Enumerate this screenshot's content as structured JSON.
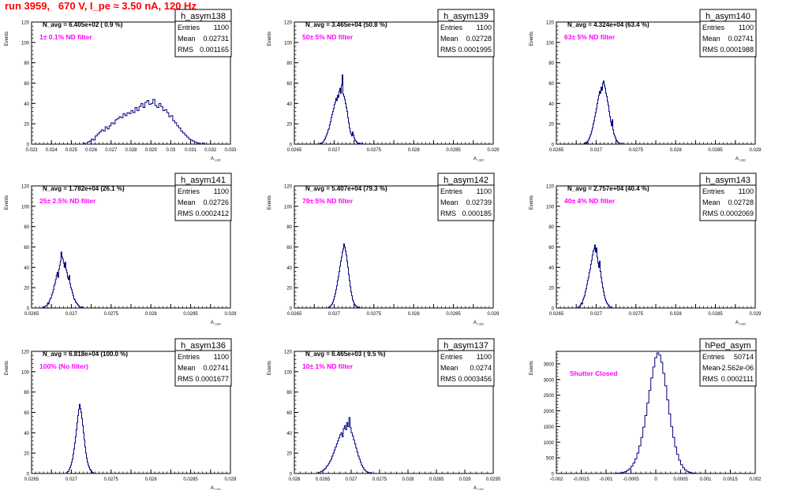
{
  "page_title": "run 3959,   670 V, I_pe ≈ 3.50 nA, 120 Hz",
  "chart_data": [
    {
      "type": "bar",
      "hist": "h_asym138",
      "nline": "N_avg = 6.405e+02 ( 0.9 %)",
      "filter": "1± 0.1% ND filter",
      "stats": {
        "entries_label": "Entries",
        "entries": "1100",
        "mean_label": "Mean",
        "mean": "0.02731",
        "rms_label": "RMS",
        "rms": "0.001165"
      },
      "xlim": [
        0.023,
        0.033
      ],
      "ylim": [
        0,
        120
      ],
      "xticks": [
        "0.023",
        "0.024",
        "0.025",
        "0.026",
        "0.027",
        "0.028",
        "0.029",
        "0.03",
        "0.031",
        "0.032",
        "0.033"
      ],
      "yticks": [
        "0",
        "20",
        "40",
        "60",
        "80",
        "100",
        "120"
      ],
      "ylabel": "Events",
      "xlabel": "A",
      "xlabel_sub": "LED",
      "bins": {
        "start": 0.0255,
        "width": 0.0001,
        "counts": [
          0,
          1,
          0,
          2,
          3,
          5,
          4,
          8,
          10,
          12,
          14,
          13,
          17,
          15,
          18,
          21,
          20,
          24,
          25,
          27,
          26,
          30,
          28,
          31,
          30,
          33,
          31,
          36,
          33,
          37,
          40,
          36,
          41,
          43,
          39,
          40,
          44,
          38,
          36,
          40,
          37,
          33,
          34,
          31,
          27,
          28,
          23,
          21,
          18,
          16,
          13,
          11,
          9,
          7,
          5,
          4,
          3,
          2,
          1,
          1,
          0,
          1
        ]
      }
    },
    {
      "type": "bar",
      "hist": "h_asym139",
      "nline": "N_avg = 3.465e+04 (50.8 %)",
      "filter": "50± 5% ND filter",
      "stats": {
        "entries_label": "Entries",
        "entries": "1100",
        "mean_label": "Mean",
        "mean": "0.02728",
        "rms_label": "RMS",
        "rms": "0.0001995"
      },
      "xlim": [
        0.0265,
        0.029
      ],
      "ylim": [
        0,
        120
      ],
      "xticks": [
        "0.0265",
        "",
        "0.027",
        "",
        "0.0275",
        "",
        "0.028",
        "",
        "0.0285",
        "",
        "0.029"
      ],
      "yticks": [
        "0",
        "20",
        "40",
        "60",
        "80",
        "100",
        "120"
      ],
      "ylabel": "Events",
      "xlabel": "A",
      "xlabel_sub": "LED",
      "bins": {
        "start": 0.02682,
        "width": 1e-05,
        "counts": [
          1,
          0,
          1,
          2,
          2,
          4,
          5,
          7,
          9,
          11,
          14,
          15,
          19,
          22,
          26,
          29,
          32,
          35,
          39,
          41,
          45,
          43,
          48,
          46,
          52,
          55,
          50,
          58,
          68,
          49,
          47,
          44,
          40,
          36,
          32,
          26,
          21,
          16,
          12,
          10,
          8,
          12,
          9,
          6,
          4,
          3,
          2,
          1,
          1,
          0,
          1,
          0,
          0,
          1
        ]
      }
    },
    {
      "type": "bar",
      "hist": "h_asym140",
      "nline": "N_avg = 4.324e+04 (63.4 %)",
      "filter": "63± 5% ND filter",
      "stats": {
        "entries_label": "Entries",
        "entries": "1100",
        "mean_label": "Mean",
        "mean": "0.02741",
        "rms_label": "RMS",
        "rms": "0.0001988"
      },
      "xlim": [
        0.0265,
        0.029
      ],
      "ylim": [
        0,
        120
      ],
      "xticks": [
        "0.0265",
        "",
        "0.027",
        "",
        "0.0275",
        "",
        "0.028",
        "",
        "0.0285",
        "",
        "0.029"
      ],
      "yticks": [
        "0",
        "20",
        "40",
        "60",
        "80",
        "100",
        "120"
      ],
      "ylabel": "Events",
      "xlabel": "A",
      "xlabel_sub": "LED",
      "bins": {
        "start": 0.02685,
        "width": 1e-05,
        "counts": [
          1,
          0,
          2,
          1,
          3,
          4,
          6,
          8,
          10,
          13,
          16,
          20,
          23,
          27,
          31,
          35,
          40,
          44,
          48,
          52,
          50,
          56,
          53,
          60,
          62,
          58,
          55,
          50,
          47,
          42,
          38,
          32,
          27,
          22,
          18,
          24,
          14,
          10,
          8,
          6,
          4,
          3,
          2,
          1,
          1,
          0,
          0,
          1
        ]
      }
    },
    {
      "type": "bar",
      "hist": "h_asym141",
      "nline": "N_avg = 1.782e+04 (26.1 %)",
      "filter": "25± 2.5% ND filter",
      "stats": {
        "entries_label": "Entries",
        "entries": "1100",
        "mean_label": "Mean",
        "mean": "0.02726",
        "rms_label": "RMS",
        "rms": "0.0002412"
      },
      "xlim": [
        0.0265,
        0.029
      ],
      "ylim": [
        0,
        120
      ],
      "xticks": [
        "0.0265",
        "",
        "0.027",
        "",
        "0.0275",
        "",
        "0.028",
        "",
        "0.0285",
        "",
        "0.029"
      ],
      "yticks": [
        "0",
        "20",
        "40",
        "60",
        "80",
        "100",
        "120"
      ],
      "ylabel": "Events",
      "xlabel": "A",
      "xlabel_sub": "LED",
      "bins": {
        "start": 0.02664,
        "width": 1e-05,
        "counts": [
          1,
          0,
          1,
          2,
          2,
          3,
          5,
          4,
          7,
          9,
          10,
          13,
          15,
          18,
          22,
          24,
          28,
          32,
          35,
          30,
          38,
          42,
          46,
          55,
          50,
          48,
          44,
          40,
          45,
          38,
          35,
          30,
          28,
          32,
          24,
          20,
          18,
          15,
          12,
          9,
          8,
          6,
          5,
          4,
          3,
          2,
          1,
          1,
          0,
          1
        ]
      }
    },
    {
      "type": "bar",
      "hist": "h_asym142",
      "nline": "N_avg = 5.407e+04 (79.3 %)",
      "filter": "79± 5% ND filter",
      "stats": {
        "entries_label": "Entries",
        "entries": "1100",
        "mean_label": "Mean",
        "mean": "0.02739",
        "rms_label": "RMS",
        "rms": "0.000185"
      },
      "xlim": [
        0.0265,
        0.029
      ],
      "ylim": [
        0,
        120
      ],
      "xticks": [
        "0.0265",
        "",
        "0.027",
        "",
        "0.0275",
        "",
        "0.028",
        "",
        "0.0285",
        "",
        "0.029"
      ],
      "yticks": [
        "0",
        "20",
        "40",
        "60",
        "80",
        "100",
        "120"
      ],
      "ylabel": "Events",
      "xlabel": "A",
      "xlabel_sub": "LED",
      "bins": {
        "start": 0.02693,
        "width": 1e-05,
        "counts": [
          1,
          0,
          2,
          3,
          4,
          6,
          8,
          11,
          14,
          18,
          22,
          27,
          31,
          36,
          41,
          46,
          50,
          55,
          58,
          63,
          60,
          56,
          52,
          46,
          40,
          33,
          27,
          21,
          16,
          12,
          8,
          6,
          4,
          3,
          2,
          1,
          1,
          0,
          1
        ]
      }
    },
    {
      "type": "bar",
      "hist": "h_asym143",
      "nline": "N_avg = 2.757e+04 (40.4 %)",
      "filter": "40± 4% ND filter",
      "stats": {
        "entries_label": "Entries",
        "entries": "1100",
        "mean_label": "Mean",
        "mean": "0.02728",
        "rms_label": "RMS",
        "rms": "0.0002069"
      },
      "xlim": [
        0.0265,
        0.029
      ],
      "ylim": [
        0,
        120
      ],
      "xticks": [
        "0.0265",
        "",
        "0.027",
        "",
        "0.0275",
        "",
        "0.028",
        "",
        "0.0285",
        "",
        "0.029"
      ],
      "yticks": [
        "0",
        "20",
        "40",
        "60",
        "80",
        "100",
        "120"
      ],
      "ylabel": "Events",
      "xlabel": "A",
      "xlabel_sub": "LED",
      "bins": {
        "start": 0.02677,
        "width": 1e-05,
        "counts": [
          1,
          1,
          2,
          3,
          5,
          4,
          8,
          10,
          12,
          16,
          19,
          23,
          27,
          30,
          35,
          38,
          43,
          47,
          52,
          56,
          58,
          62,
          55,
          59,
          50,
          44,
          40,
          46,
          36,
          30,
          25,
          20,
          16,
          12,
          9,
          7,
          5,
          4,
          3,
          2,
          1,
          1
        ]
      }
    },
    {
      "type": "bar",
      "hist": "h_asym136",
      "nline": "N_avg = 6.818e+04 (100.0 %)",
      "filter": "100% (No filter)",
      "stats": {
        "entries_label": "Entries",
        "entries": "1100",
        "mean_label": "Mean",
        "mean": "0.02741",
        "rms_label": "RMS",
        "rms": "0.0001677"
      },
      "xlim": [
        0.0265,
        0.029
      ],
      "ylim": [
        0,
        120
      ],
      "xticks": [
        "0.0265",
        "",
        "0.027",
        "",
        "0.0275",
        "",
        "0.028",
        "",
        "0.0285",
        "",
        "0.029"
      ],
      "yticks": [
        "0",
        "20",
        "40",
        "60",
        "80",
        "100",
        "120"
      ],
      "ylabel": "Events",
      "xlabel": "A",
      "xlabel_sub": "LED",
      "bins": {
        "start": 0.02694,
        "width": 1e-05,
        "counts": [
          1,
          2,
          2,
          4,
          6,
          8,
          11,
          14,
          19,
          24,
          30,
          36,
          43,
          50,
          57,
          63,
          68,
          64,
          60,
          54,
          47,
          40,
          33,
          26,
          20,
          15,
          11,
          8,
          6,
          4,
          3,
          2,
          1,
          1
        ]
      }
    },
    {
      "type": "bar",
      "hist": "h_asym137",
      "nline": "N_avg = 6.465e+03 ( 9.5 %)",
      "filter": "10± 1% ND filter",
      "stats": {
        "entries_label": "Entries",
        "entries": "1100",
        "mean_label": "Mean",
        "mean": "0.0274",
        "rms_label": "RMS",
        "rms": "0.0003456"
      },
      "xlim": [
        0.026,
        0.0295
      ],
      "ylim": [
        0,
        120
      ],
      "xticks": [
        "0.026",
        "0.0265",
        "0.027",
        "0.0275",
        "0.028",
        "0.0285",
        "0.029",
        "0.0295"
      ],
      "yticks": [
        "0",
        "20",
        "40",
        "60",
        "80",
        "100",
        "120"
      ],
      "ylabel": "Events",
      "xlabel": "A",
      "xlabel_sub": "LED",
      "bins": {
        "start": 0.02642,
        "width": 2e-05,
        "counts": [
          1,
          0,
          2,
          2,
          3,
          4,
          5,
          7,
          8,
          10,
          12,
          14,
          17,
          20,
          23,
          26,
          29,
          32,
          35,
          38,
          40,
          36,
          44,
          47,
          43,
          50,
          46,
          55,
          45,
          40,
          37,
          33,
          29,
          25,
          21,
          17,
          14,
          11,
          8,
          6,
          4,
          3,
          2,
          1,
          1,
          0,
          1
        ]
      }
    },
    {
      "type": "bar",
      "hist": "hPed_asym",
      "nline": "",
      "filter": "Shutter Closed",
      "stats": {
        "entries_label": "Entries",
        "entries": "50714",
        "mean_label": "Mean",
        "mean": "-2.562e-06",
        "rms_label": "RMS",
        "rms": "0.0002111"
      },
      "xlim": [
        -0.002,
        0.002
      ],
      "ylim": [
        0,
        3900
      ],
      "xticks": [
        "-0.002",
        "-0.0015",
        "-0.001",
        "-0.0005",
        "0",
        "0.0005",
        "0.001",
        "0.0015",
        "0.002"
      ],
      "yticks": [
        "0",
        "500",
        "1000",
        "1500",
        "2000",
        "2500",
        "3000",
        "3500"
      ],
      "ylabel": "Events",
      "xlabel": "",
      "xlabel_sub": "",
      "bins": {
        "start": -0.0009,
        "width": 4e-05,
        "counts": [
          2,
          3,
          5,
          8,
          14,
          24,
          40,
          65,
          100,
          150,
          230,
          330,
          470,
          650,
          880,
          1150,
          1480,
          1850,
          2250,
          2650,
          3050,
          3400,
          3700,
          3850,
          3780,
          3550,
          3200,
          2800,
          2350,
          1900,
          1500,
          1150,
          850,
          610,
          420,
          280,
          180,
          110,
          65,
          38,
          22,
          12,
          6,
          3,
          2
        ]
      }
    }
  ]
}
